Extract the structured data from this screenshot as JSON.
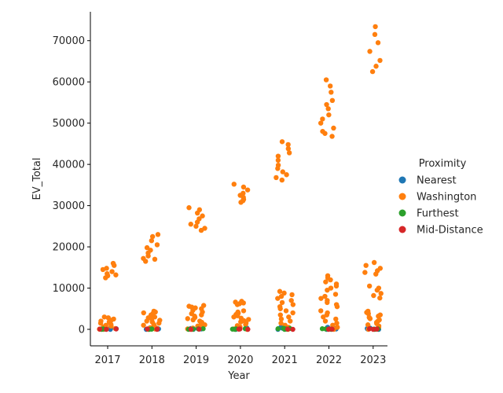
{
  "chart_data": {
    "type": "scatter",
    "subtype": "strip",
    "title": "",
    "xlabel": "Year",
    "ylabel": "EV_Total",
    "categories": [
      "2017",
      "2018",
      "2019",
      "2020",
      "2021",
      "2022",
      "2023"
    ],
    "ylim": [
      -4000,
      77000
    ],
    "yticks": [
      0,
      10000,
      20000,
      30000,
      40000,
      50000,
      60000,
      70000
    ],
    "ytick_labels": [
      "0",
      "10000",
      "20000",
      "30000",
      "40000",
      "50000",
      "60000",
      "70000"
    ],
    "grid": false,
    "legend": {
      "title": "Proximity",
      "placement": "right"
    },
    "series": [
      {
        "name": "Nearest",
        "color": "#1f77b4",
        "points": [
          {
            "x": "2017",
            "y": [
              0,
              50,
              100,
              150,
              200,
              300
            ]
          },
          {
            "x": "2018",
            "y": [
              0,
              100,
              150,
              200,
              300
            ]
          },
          {
            "x": "2019",
            "y": [
              0,
              100,
              200,
              300
            ]
          },
          {
            "x": "2020",
            "y": [
              0,
              100,
              200,
              300,
              400
            ]
          },
          {
            "x": "2021",
            "y": [
              0,
              100,
              200,
              300,
              500
            ]
          },
          {
            "x": "2022",
            "y": [
              0,
              100,
              200,
              300,
              500
            ]
          },
          {
            "x": "2023",
            "y": [
              0,
              100,
              200,
              300
            ]
          }
        ]
      },
      {
        "name": "Washington",
        "color": "#ff7f0e",
        "points": [
          {
            "x": "2017",
            "y": [
              12500,
              13000,
              13200,
              13500,
              14000,
              14500,
              14800,
              15500,
              16000,
              3000,
              2800,
              2500,
              2200,
              2000,
              1800,
              1500,
              1200,
              1000,
              800,
              600,
              500,
              400,
              300,
              200,
              100,
              50,
              0
            ]
          },
          {
            "x": "2018",
            "y": [
              16500,
              17000,
              17200,
              17800,
              18500,
              19200,
              19800,
              20500,
              21500,
              22500,
              23000,
              4400,
              4200,
              4000,
              3800,
              3500,
              3200,
              3000,
              2800,
              2500,
              2200,
              2000,
              1800,
              1500,
              1200,
              1000,
              800,
              600,
              400,
              200,
              100,
              0
            ]
          },
          {
            "x": "2019",
            "y": [
              24000,
              24500,
              25000,
              25500,
              26000,
              26800,
              27500,
              28200,
              29000,
              29500,
              5800,
              5600,
              5400,
              5200,
              5000,
              4600,
              4200,
              3800,
              3500,
              3200,
              2900,
              2600,
              2300,
              2000,
              1700,
              1400,
              1100,
              800,
              500,
              300,
              100,
              0
            ]
          },
          {
            "x": "2020",
            "y": [
              30800,
              31200,
              31500,
              32000,
              32500,
              33000,
              33800,
              34500,
              35200,
              6800,
              6600,
              6400,
              6200,
              6000,
              4500,
              4200,
              3900,
              3600,
              3300,
              3000,
              2700,
              2400,
              2100,
              1800,
              1500,
              1200,
              900,
              600,
              300,
              100,
              0
            ]
          },
          {
            "x": "2021",
            "y": [
              36200,
              36800,
              37500,
              38200,
              39000,
              39800,
              41000,
              42000,
              42800,
              43800,
              44800,
              45500,
              9200,
              8800,
              8400,
              8000,
              7500,
              7000,
              6500,
              6000,
              5500,
              5000,
              4500,
              4000,
              3500,
              3000,
              2500,
              2000,
              1500,
              1000,
              500,
              200,
              0
            ]
          },
          {
            "x": "2022",
            "y": [
              46800,
              47500,
              48000,
              48800,
              50000,
              51000,
              52000,
              53500,
              54500,
              55500,
              57500,
              59000,
              60500,
              13000,
              12500,
              12000,
              11500,
              11000,
              10500,
              10000,
              9500,
              8500,
              8000,
              7500,
              7000,
              6500,
              6000,
              5500,
              4500,
              4000,
              3500,
              3000,
              2500,
              2000,
              1500,
              1000,
              500,
              0
            ]
          },
          {
            "x": "2023",
            "y": [
              62500,
              63800,
              65200,
              67400,
              69500,
              71500,
              73400,
              16200,
              15500,
              14800,
              14200,
              13800,
              13400,
              10500,
              10000,
              9500,
              8700,
              8200,
              7600,
              4400,
              4100,
              3800,
              3500,
              3200,
              2900,
              2600,
              2300,
              2000,
              1700,
              1400,
              1100,
              800,
              500,
              200,
              0
            ]
          }
        ]
      },
      {
        "name": "Furthest",
        "color": "#2ca02c",
        "points": [
          {
            "x": "2017",
            "y": [
              0,
              50,
              100
            ]
          },
          {
            "x": "2018",
            "y": [
              0,
              50,
              100
            ]
          },
          {
            "x": "2019",
            "y": [
              0,
              50,
              100,
              150
            ]
          },
          {
            "x": "2020",
            "y": [
              0,
              50,
              100,
              150
            ]
          },
          {
            "x": "2021",
            "y": [
              0,
              50,
              100,
              150,
              200,
              250
            ]
          },
          {
            "x": "2022",
            "y": [
              0,
              50,
              100,
              150
            ]
          },
          {
            "x": "2023",
            "y": [
              0,
              50,
              100
            ]
          }
        ]
      },
      {
        "name": "Mid-Distance",
        "color": "#d62728",
        "points": [
          {
            "x": "2017",
            "y": [
              0,
              50,
              100
            ]
          },
          {
            "x": "2018",
            "y": [
              0,
              50,
              100
            ]
          },
          {
            "x": "2019",
            "y": [
              0,
              50
            ]
          },
          {
            "x": "2020",
            "y": [
              0,
              50,
              100
            ]
          },
          {
            "x": "2021",
            "y": [
              0,
              50
            ]
          },
          {
            "x": "2022",
            "y": [
              0,
              50,
              100
            ]
          },
          {
            "x": "2023",
            "y": [
              0,
              50,
              100,
              150
            ]
          }
        ]
      }
    ]
  }
}
